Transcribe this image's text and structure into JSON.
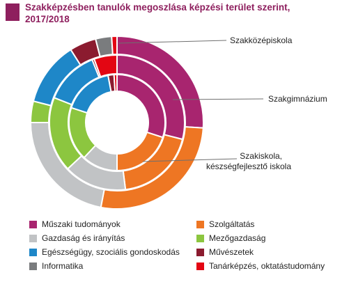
{
  "title_lines": [
    "Szakképzésben tanulók megoszlása képzési terület szerint,",
    "2017/2018"
  ],
  "chart_data": {
    "type": "pie",
    "subtype": "nested-donut",
    "rings": [
      {
        "label": "Szakközépiskola",
        "values": [
          26,
          27,
          22,
          4,
          12,
          5,
          3,
          1
        ]
      },
      {
        "label": "Szakgimnázium",
        "values": [
          29,
          19,
          15,
          18,
          13,
          0.5,
          0,
          5.5
        ]
      },
      {
        "label_lines": [
          "Szakiskola,",
          "készségfejlesztő iskola"
        ],
        "values": [
          30,
          20,
          12,
          18,
          17,
          2,
          0,
          1
        ]
      }
    ],
    "categories": [
      "Műszaki tudományok",
      "Szolgáltatás",
      "Gazdaság és irányítás",
      "Mezőgazdaság",
      "Egészségügy, szociális gondoskodás",
      "Művészetek",
      "Informatika",
      "Tanárképzés, oktatástudomány"
    ],
    "colors": [
      "#a8256f",
      "#ee7623",
      "#c1c3c5",
      "#8cc63f",
      "#1e87c8",
      "#8b1b2f",
      "#7a7c7e",
      "#e30613"
    ],
    "units": "%",
    "legend_position": "bottom"
  },
  "legend_items": [
    {
      "label": "Műszaki tudományok",
      "color": "#a8256f"
    },
    {
      "label": "Szolgáltatás",
      "color": "#ee7623"
    },
    {
      "label": "Gazdaság és irányítás",
      "color": "#c1c3c5"
    },
    {
      "label": "Mezőgazdaság",
      "color": "#8cc63f"
    },
    {
      "label": "Egészségügy, szociális gondoskodás",
      "color": "#1e87c8"
    },
    {
      "label": "Művészetek",
      "color": "#8b1b2f"
    },
    {
      "label": "Informatika",
      "color": "#7a7c7e"
    },
    {
      "label": "Tanárképzés, oktatástudomány",
      "color": "#e30613"
    }
  ]
}
